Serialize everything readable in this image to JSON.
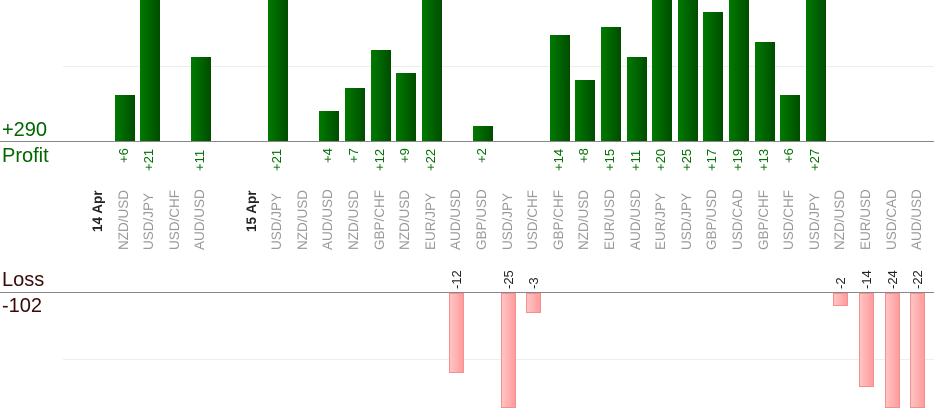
{
  "chart_data": {
    "type": "bar",
    "profit": {
      "label": "Profit",
      "total": "+290",
      "color": "#006600"
    },
    "loss": {
      "label": "Loss",
      "total": "-102",
      "color": "#3a0a0a"
    },
    "groups": [
      {
        "date": "14 Apr",
        "trades": [
          {
            "pair": "NZD/USD",
            "value": 6
          },
          {
            "pair": "USD/JPY",
            "value": 21
          },
          {
            "pair": "USD/CHF",
            "value": null
          },
          {
            "pair": "AUD/USD",
            "value": 11
          }
        ]
      },
      {
        "date": "15 Apr",
        "trades": [
          {
            "pair": "USD/JPY",
            "value": 21
          },
          {
            "pair": "NZD/USD",
            "value": null
          },
          {
            "pair": "AUD/USD",
            "value": 4
          },
          {
            "pair": "NZD/USD",
            "value": 7
          },
          {
            "pair": "GBP/CHF",
            "value": 12
          },
          {
            "pair": "NZD/USD",
            "value": 9
          },
          {
            "pair": "EUR/JPY",
            "value": 22
          },
          {
            "pair": "AUD/USD",
            "value": -12
          },
          {
            "pair": "GBP/USD",
            "value": 2
          },
          {
            "pair": "USD/JPY",
            "value": -25
          },
          {
            "pair": "USD/CHF",
            "value": -3
          },
          {
            "pair": "GBP/CHF",
            "value": 14
          },
          {
            "pair": "NZD/USD",
            "value": 8
          },
          {
            "pair": "EUR/USD",
            "value": 15
          },
          {
            "pair": "AUD/USD",
            "value": 11
          },
          {
            "pair": "EUR/JPY",
            "value": 20
          },
          {
            "pair": "USD/JPY",
            "value": 25
          },
          {
            "pair": "GBP/USD",
            "value": 17
          },
          {
            "pair": "USD/CAD",
            "value": 19
          },
          {
            "pair": "GBP/CHF",
            "value": 13
          },
          {
            "pair": "USD/CHF",
            "value": 6
          },
          {
            "pair": "USD/JPY",
            "value": 27
          },
          {
            "pair": "NZD/USD",
            "value": -2
          },
          {
            "pair": "EUR/USD",
            "value": -14
          },
          {
            "pair": "USD/CAD",
            "value": -24
          },
          {
            "pair": "AUD/USD",
            "value": -22
          }
        ]
      }
    ],
    "grid": true,
    "colors": {
      "profit_bar": "#006400",
      "loss_bar": "#ffb0b0"
    }
  }
}
